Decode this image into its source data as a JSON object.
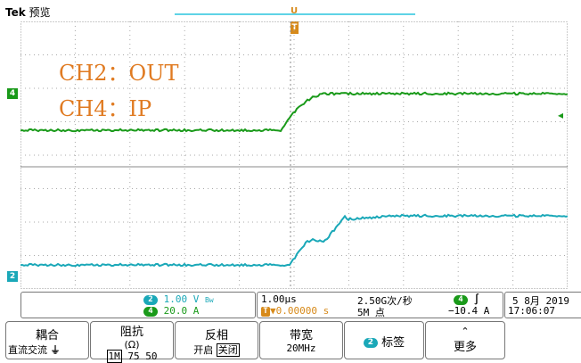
{
  "header": {
    "brand": "Tek",
    "mode": "预览",
    "trigger_pos_label": "U",
    "trigger_marker_label": "T"
  },
  "overlay": {
    "ch2_label": "CH2：OUT",
    "ch4_label": "CH4：IP"
  },
  "channels": {
    "ch4": {
      "id": "4",
      "color": "#1a9a1a",
      "scale": "20.0 A"
    },
    "ch2": {
      "id": "2",
      "color": "#1aa8b8",
      "scale": "1.00 V",
      "bw_symbol": "Bᴡ"
    }
  },
  "waveforms": {
    "ch4_low_y": 146,
    "ch4_high_y": 105,
    "ch2_low_y": 297,
    "ch2_high_y": 242
  },
  "timebase": {
    "time_div": "1.00µs",
    "trigger_delay": "▼0.00000 s",
    "trigger_icon": "T",
    "sample_rate": "2.50G次/秒",
    "record_length": "5M 点"
  },
  "trigger": {
    "source": "4",
    "slope_icon": "∫",
    "level": "−10.4 A"
  },
  "datetime": {
    "date": "5 8月 2019",
    "time": "17:06:07"
  },
  "menu": {
    "coupling": {
      "title": "耦合",
      "options": "直流交流",
      "gnd": "⏚"
    },
    "impedance": {
      "title": "阻抗",
      "unit": "(Ω)",
      "v1": "1M",
      "v2": "75",
      "v3": "50"
    },
    "invert": {
      "title": "反相",
      "on": "开启",
      "off": "关闭"
    },
    "bandwidth": {
      "title": "带宽",
      "value": "20MHz"
    },
    "label": {
      "badge": "2",
      "text": "标签"
    },
    "more": {
      "arrow": "⌃",
      "text": "更多"
    }
  }
}
